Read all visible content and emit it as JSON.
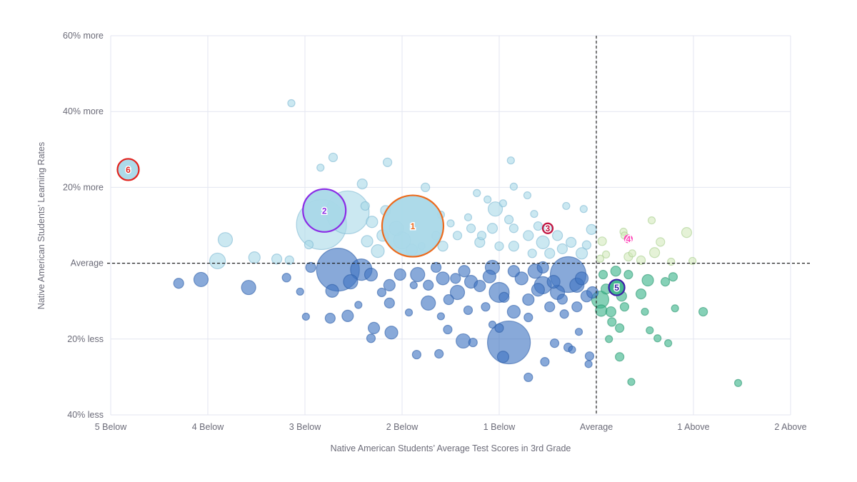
{
  "chart_data": {
    "type": "scatter",
    "title": "",
    "xlabel": "Native American Students’ Average Test Scores in 3rd Grade",
    "ylabel": "Native American Students’ Learning Rates",
    "xlim": [
      -5,
      2
    ],
    "ylim": [
      -40,
      60
    ],
    "grid": true,
    "x_ticks": [
      {
        "value": -5,
        "label": "5 Below"
      },
      {
        "value": -4,
        "label": "4 Below"
      },
      {
        "value": -3,
        "label": "3 Below"
      },
      {
        "value": -2,
        "label": "2 Below"
      },
      {
        "value": -1,
        "label": "1 Below"
      },
      {
        "value": 0,
        "label": "Average"
      },
      {
        "value": 1,
        "label": "1 Above"
      },
      {
        "value": 2,
        "label": "2 Above"
      }
    ],
    "y_ticks": [
      {
        "value": 60,
        "label": "60% more"
      },
      {
        "value": 40,
        "label": "40% more"
      },
      {
        "value": 20,
        "label": "20% more"
      },
      {
        "value": 0,
        "label": "Average"
      },
      {
        "value": -20,
        "label": "20% less"
      },
      {
        "value": -40,
        "label": "40% less"
      }
    ],
    "reference_lines": {
      "x": 0,
      "y": 0,
      "style": "dashed"
    },
    "quadrant_colors": {
      "upper_left": "#a9d8e8",
      "lower_left": "#3f74c2",
      "upper_right": "#d3eabd",
      "lower_right": "#3cb48a"
    },
    "points_format": [
      "x",
      "y",
      "size"
    ],
    "points": [
      [
        -3.14,
        42.2,
        5
      ],
      [
        -2.71,
        27.9,
        6
      ],
      [
        -2.84,
        25.2,
        5
      ],
      [
        -2.15,
        26.6,
        6
      ],
      [
        -0.88,
        27.1,
        5
      ],
      [
        -2.41,
        20.9,
        7
      ],
      [
        -1.76,
        20.0,
        6
      ],
      [
        -1.23,
        18.5,
        5
      ],
      [
        -0.85,
        20.2,
        5
      ],
      [
        -1.04,
        14.3,
        10
      ],
      [
        -0.71,
        17.9,
        5
      ],
      [
        -0.31,
        15.1,
        5
      ],
      [
        -0.13,
        14.3,
        5
      ],
      [
        -2.38,
        15.1,
        6
      ],
      [
        -2.83,
        10.2,
        35
      ],
      [
        -2.56,
        13.4,
        30
      ],
      [
        -2.31,
        10.9,
        8
      ],
      [
        -3.82,
        6.2,
        10
      ],
      [
        -3.9,
        0.6,
        11
      ],
      [
        -3.52,
        1.5,
        8
      ],
      [
        -3.29,
        1.1,
        7
      ],
      [
        -3.16,
        0.8,
        6
      ],
      [
        -2.2,
        7.3,
        8
      ],
      [
        -2.06,
        9.2,
        10
      ],
      [
        -2.17,
        13.9,
        7
      ],
      [
        -1.58,
        4.5,
        7
      ],
      [
        -1.29,
        9.2,
        6
      ],
      [
        -1.32,
        12.1,
        5
      ],
      [
        -1.07,
        9.2,
        7
      ],
      [
        -0.85,
        9.2,
        6
      ],
      [
        -1.0,
        4.5,
        6
      ],
      [
        -0.7,
        7.3,
        7
      ],
      [
        -0.55,
        5.5,
        9
      ],
      [
        -0.4,
        7.3,
        7
      ],
      [
        -0.26,
        5.5,
        7
      ],
      [
        -0.05,
        8.9,
        7
      ],
      [
        -0.15,
        2.6,
        8
      ],
      [
        -0.48,
        2.6,
        7
      ],
      [
        -1.43,
        7.3,
        6
      ],
      [
        -1.65,
        7.3,
        6
      ],
      [
        -1.8,
        4.5,
        5
      ],
      [
        -2.36,
        5.8,
        8
      ],
      [
        -2.96,
        4.9,
        6
      ],
      [
        -1.12,
        16.8,
        5
      ],
      [
        -0.96,
        15.8,
        5
      ],
      [
        -0.64,
        13.0,
        5
      ],
      [
        -1.18,
        7.3,
        6
      ],
      [
        -0.85,
        4.5,
        7
      ],
      [
        -0.66,
        2.6,
        6
      ],
      [
        -2.0,
        6.0,
        12
      ],
      [
        -1.9,
        3.5,
        8
      ],
      [
        -1.5,
        10.5,
        5
      ],
      [
        -1.2,
        5.5,
        7
      ],
      [
        -0.9,
        11.5,
        6
      ],
      [
        -0.6,
        9.8,
        6
      ],
      [
        -0.35,
        3.8,
        7
      ],
      [
        -0.1,
        4.8,
        6
      ],
      [
        -1.6,
        12.8,
        5
      ],
      [
        -2.25,
        3.2,
        9
      ],
      [
        0.06,
        5.8,
        6
      ],
      [
        0.1,
        2.3,
        5
      ],
      [
        0.28,
        8.3,
        5
      ],
      [
        0.29,
        7.3,
        5
      ],
      [
        0.57,
        11.3,
        5
      ],
      [
        0.66,
        5.6,
        6
      ],
      [
        0.6,
        2.8,
        7
      ],
      [
        0.93,
        8.1,
        7
      ],
      [
        0.99,
        0.6,
        5
      ],
      [
        0.37,
        2.6,
        5
      ],
      [
        0.33,
        1.7,
        6
      ],
      [
        0.46,
        0.8,
        6
      ],
      [
        0.77,
        0.4,
        5
      ],
      [
        0.04,
        1.2,
        5
      ],
      [
        -4.3,
        -5.3,
        7
      ],
      [
        -4.07,
        -4.3,
        10
      ],
      [
        -3.58,
        -6.4,
        10
      ],
      [
        -3.19,
        -3.8,
        6
      ],
      [
        -3.05,
        -7.5,
        5
      ],
      [
        -2.99,
        -14.1,
        5
      ],
      [
        -2.72,
        -7.3,
        9
      ],
      [
        -2.66,
        -1.7,
        30
      ],
      [
        -2.74,
        -14.5,
        7
      ],
      [
        -2.56,
        -13.9,
        8
      ],
      [
        -2.42,
        -1.7,
        15
      ],
      [
        -2.53,
        -4.9,
        10
      ],
      [
        -2.13,
        -5.8,
        8
      ],
      [
        -2.13,
        -10.5,
        7
      ],
      [
        -2.29,
        -17.1,
        8
      ],
      [
        -2.32,
        -19.8,
        6
      ],
      [
        -2.11,
        -18.3,
        9
      ],
      [
        -1.93,
        -13.0,
        5
      ],
      [
        -1.85,
        -24.1,
        6
      ],
      [
        -1.62,
        -23.9,
        6
      ],
      [
        -1.73,
        -10.5,
        10
      ],
      [
        -1.53,
        -17.5,
        6
      ],
      [
        -1.37,
        -20.5,
        10
      ],
      [
        -1.27,
        -20.9,
        6
      ],
      [
        -0.9,
        -20.9,
        30
      ],
      [
        -0.96,
        -24.7,
        8
      ],
      [
        -0.85,
        -12.8,
        9
      ],
      [
        -0.7,
        -30.1,
        6
      ],
      [
        -0.53,
        -26.0,
        6
      ],
      [
        -0.43,
        -21.1,
        6
      ],
      [
        -0.29,
        -22.2,
        6
      ],
      [
        -0.25,
        -22.8,
        5
      ],
      [
        -0.07,
        -24.5,
        6
      ],
      [
        -0.08,
        -26.6,
        5
      ],
      [
        -0.18,
        -18.1,
        5
      ],
      [
        -0.29,
        -3.0,
        25
      ],
      [
        -0.55,
        -5.8,
        12
      ],
      [
        -1.0,
        -7.7,
        14
      ],
      [
        -1.43,
        -7.7,
        10
      ],
      [
        -2.02,
        -3.0,
        8
      ],
      [
        -1.84,
        -3.0,
        10
      ],
      [
        -1.58,
        -4.0,
        9
      ],
      [
        -1.29,
        -4.9,
        9
      ],
      [
        -1.07,
        -1.1,
        10
      ],
      [
        -0.77,
        -4.0,
        9
      ],
      [
        -0.63,
        -2.1,
        10
      ],
      [
        -0.4,
        -7.7,
        10
      ],
      [
        -0.15,
        -4.0,
        9
      ],
      [
        -0.1,
        -8.7,
        8
      ],
      [
        -0.2,
        -11.5,
        7
      ],
      [
        -0.48,
        -11.5,
        7
      ],
      [
        -0.7,
        -9.6,
        8
      ],
      [
        -1.14,
        -11.5,
        6
      ],
      [
        -1.32,
        -12.4,
        6
      ],
      [
        -1.52,
        -9.6,
        7
      ],
      [
        -1.73,
        -5.8,
        7
      ],
      [
        -2.32,
        -3.0,
        9
      ],
      [
        -2.94,
        -1.1,
        7
      ],
      [
        -2.21,
        -7.7,
        6
      ],
      [
        -1.88,
        -5.8,
        5
      ],
      [
        -1.0,
        -17.1,
        6
      ],
      [
        -1.07,
        -16.2,
        5
      ],
      [
        -0.7,
        -14.3,
        6
      ],
      [
        -0.33,
        -13.4,
        6
      ],
      [
        -0.44,
        -4.9,
        9
      ],
      [
        -0.2,
        -5.8,
        10
      ],
      [
        -0.04,
        -7.7,
        8
      ],
      [
        -0.55,
        -1.1,
        8
      ],
      [
        -0.85,
        -2.1,
        8
      ],
      [
        -1.36,
        -2.1,
        8
      ],
      [
        -1.65,
        -1.1,
        7
      ],
      [
        -1.2,
        -6.0,
        8
      ],
      [
        -0.95,
        -9.0,
        7
      ],
      [
        -0.6,
        -7.0,
        9
      ],
      [
        -1.45,
        -4.0,
        7
      ],
      [
        -1.1,
        -3.5,
        9
      ],
      [
        -0.35,
        -9.5,
        7
      ],
      [
        -2.45,
        -11.0,
        5
      ],
      [
        -1.6,
        -14.0,
        5
      ],
      [
        0.07,
        -3.0,
        6
      ],
      [
        0.1,
        -6.8,
        7
      ],
      [
        0.04,
        -9.6,
        12
      ],
      [
        0.15,
        -12.8,
        7
      ],
      [
        0.13,
        -20.0,
        5
      ],
      [
        0.24,
        -17.1,
        6
      ],
      [
        0.24,
        -24.7,
        6
      ],
      [
        0.36,
        -31.3,
        5
      ],
      [
        0.33,
        -3.0,
        6
      ],
      [
        0.53,
        -4.5,
        8
      ],
      [
        0.46,
        -8.1,
        7
      ],
      [
        0.5,
        -12.8,
        5
      ],
      [
        0.55,
        -17.7,
        5
      ],
      [
        0.63,
        -19.8,
        5
      ],
      [
        0.74,
        -21.1,
        5
      ],
      [
        0.71,
        -4.9,
        6
      ],
      [
        0.79,
        -3.6,
        6
      ],
      [
        0.81,
        -11.9,
        5
      ],
      [
        1.1,
        -12.8,
        6
      ],
      [
        1.46,
        -31.6,
        5
      ],
      [
        0.29,
        -11.5,
        6
      ],
      [
        0.26,
        -8.7,
        7
      ],
      [
        0.2,
        -2.1,
        7
      ],
      [
        0.05,
        -12.5,
        8
      ],
      [
        0.16,
        -15.5,
        6
      ]
    ],
    "highlighted": [
      {
        "label": "1",
        "x": -1.89,
        "y": 9.8,
        "size": 43,
        "color": "#ec6a1c"
      },
      {
        "label": "2",
        "x": -2.8,
        "y": 13.9,
        "size": 30,
        "color": "#8b2be6"
      },
      {
        "label": "3",
        "x": -0.5,
        "y": 9.2,
        "size": 7,
        "color": "#c4123e"
      },
      {
        "label": "4",
        "x": 0.33,
        "y": 6.4,
        "size": 5,
        "color": "#ff45b8"
      },
      {
        "label": "5",
        "x": 0.21,
        "y": -6.4,
        "size": 11,
        "color": "#3b1ea6"
      },
      {
        "label": "6",
        "x": -4.82,
        "y": 24.7,
        "size": 15,
        "color": "#e3221d"
      }
    ]
  }
}
